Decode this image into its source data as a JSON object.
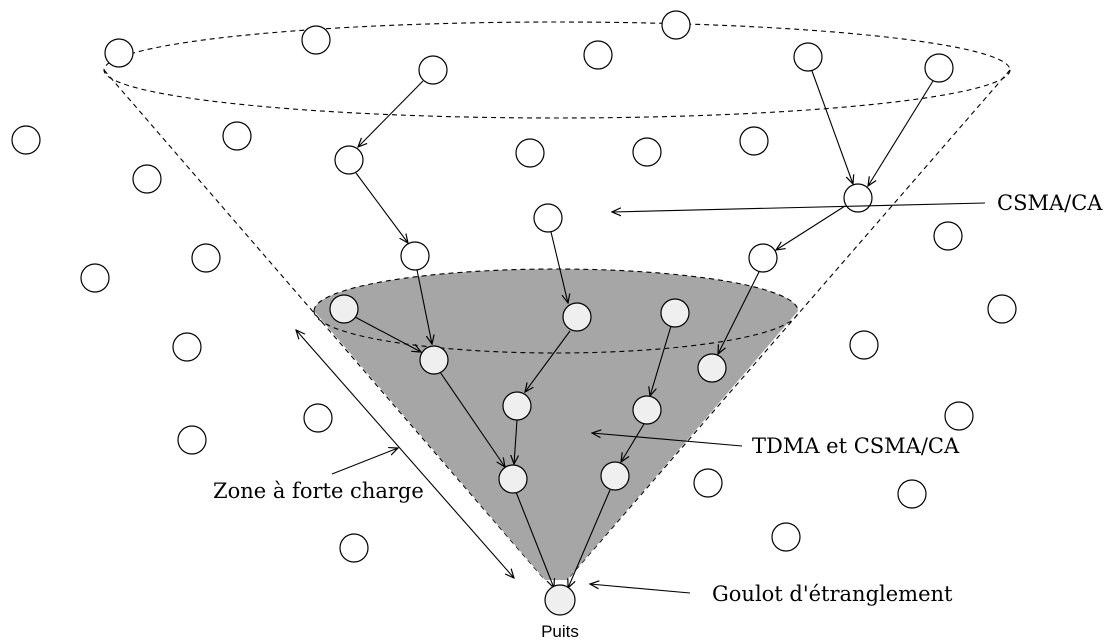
{
  "labels": {
    "csma": "CSMA/CA",
    "tdma": "TDMA et CSMA/CA",
    "zone": "Zone à forte charge",
    "goulot": "Goulot d'étranglement",
    "puits": "Puits"
  },
  "colors": {
    "high_load_zone": "#a6a6a6",
    "line": "#000000",
    "node_fill": "#ffffff",
    "node_fill_highlighted": "#efefef"
  }
}
